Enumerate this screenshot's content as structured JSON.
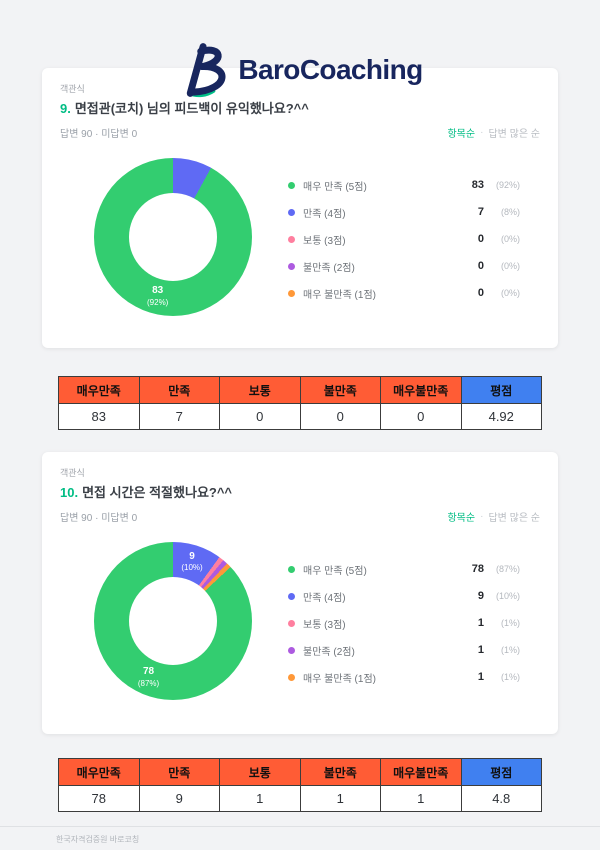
{
  "brand": {
    "name": "BaroCoaching"
  },
  "sort": {
    "primary": "항목순",
    "separator": "·",
    "secondary": "답변 많은 순"
  },
  "questions": [
    {
      "type_label": "객관식",
      "number": "9.",
      "title": "면접관(코치) 님의 피드백이 유익했나요?^^",
      "meta": "답변 90 · 미답변 0",
      "legend": [
        {
          "label": "매우 만족 (5점)",
          "count": "83",
          "pct": "(92%)"
        },
        {
          "label": "만족 (4점)",
          "count": "7",
          "pct": "(8%)"
        },
        {
          "label": "보통 (3점)",
          "count": "0",
          "pct": "(0%)"
        },
        {
          "label": "불만족 (2점)",
          "count": "0",
          "pct": "(0%)"
        },
        {
          "label": "매우 불만족 (1점)",
          "count": "0",
          "pct": "(0%)"
        }
      ],
      "table": {
        "headers": [
          "매우만족",
          "만족",
          "보통",
          "불만족",
          "매우불만족",
          "평점"
        ],
        "values": [
          "83",
          "7",
          "0",
          "0",
          "0",
          "4.92"
        ]
      }
    },
    {
      "type_label": "객관식",
      "number": "10.",
      "title": "면접 시간은 적절했나요?^^",
      "meta": "답변 90 · 미답변 0",
      "legend": [
        {
          "label": "매우 만족 (5점)",
          "count": "78",
          "pct": "(87%)"
        },
        {
          "label": "만족 (4점)",
          "count": "9",
          "pct": "(10%)"
        },
        {
          "label": "보통 (3점)",
          "count": "1",
          "pct": "(1%)"
        },
        {
          "label": "불만족 (2점)",
          "count": "1",
          "pct": "(1%)"
        },
        {
          "label": "매우 불만족 (1점)",
          "count": "1",
          "pct": "(1%)"
        }
      ],
      "table": {
        "headers": [
          "매우만족",
          "만족",
          "보통",
          "불만족",
          "매우불만족",
          "평점"
        ],
        "values": [
          "78",
          "9",
          "1",
          "1",
          "1",
          "4.8"
        ]
      }
    }
  ],
  "chart_data": [
    {
      "type": "pie",
      "donut": true,
      "title": "9. 면접관(코치) 님의 피드백이 유익했나요?^^",
      "labels": [
        "매우 만족 (5점)",
        "만족 (4점)",
        "보통 (3점)",
        "불만족 (2점)",
        "매우 불만족 (1점)"
      ],
      "values": [
        83,
        7,
        0,
        0,
        0
      ],
      "percents": [
        92,
        8,
        0,
        0,
        0
      ],
      "colors": [
        "#33cd70",
        "#5f6af4",
        "#ff7f9f",
        "#ad5be0",
        "#ff9838"
      ],
      "legend_position": "right",
      "slice_order": [
        1,
        2,
        3,
        4,
        0
      ]
    },
    {
      "type": "pie",
      "donut": true,
      "title": "10. 면접 시간은 적절했나요?^^",
      "labels": [
        "매우 만족 (5점)",
        "만족 (4점)",
        "보통 (3점)",
        "불만족 (2점)",
        "매우 불만족 (1점)"
      ],
      "values": [
        78,
        9,
        1,
        1,
        1
      ],
      "percents": [
        87,
        10,
        1,
        1,
        1
      ],
      "colors": [
        "#33cd70",
        "#5f6af4",
        "#ff7f9f",
        "#ad5be0",
        "#ff9838"
      ],
      "legend_position": "right",
      "slice_order": [
        1,
        2,
        3,
        4,
        0
      ]
    }
  ],
  "footer": {
    "text": "한국자격검증원 바로코칭"
  }
}
